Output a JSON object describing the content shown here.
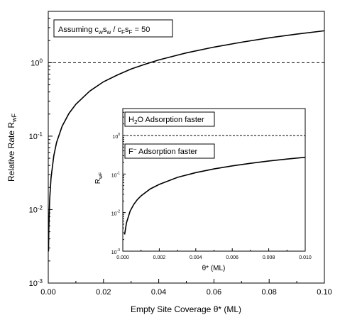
{
  "chart_data": [
    {
      "id": "main",
      "type": "line",
      "xlabel": "Empty Site Coverage θ* (ML)",
      "ylabel_main": "Relative Rate R",
      "ylabel_sub": "wF",
      "xlim": [
        0,
        0.1
      ],
      "ylim": [
        0.001,
        5
      ],
      "yscale": "log",
      "x_ticks": [
        0,
        0.02,
        0.04,
        0.06,
        0.08,
        0.1
      ],
      "x_tick_labels": [
        "0.00",
        "0.02",
        "0.04",
        "0.06",
        "0.08",
        "0.10"
      ],
      "y_ticks": [
        0.001,
        0.01,
        0.1,
        1
      ],
      "y_tick_labels": [
        {
          "base": "10",
          "exp": "-3"
        },
        {
          "base": "10",
          "exp": "-2"
        },
        {
          "base": "10",
          "exp": "-1"
        },
        {
          "base": "10",
          "exp": "0"
        }
      ],
      "reference_line_y": 1,
      "annotation": {
        "parts": [
          {
            "t": "Assuming c"
          },
          {
            "t": "w",
            "sub": true
          },
          {
            "t": "s"
          },
          {
            "t": "w",
            "sub": true
          },
          {
            "t": " / c"
          },
          {
            "t": "F",
            "sub": true
          },
          {
            "t": "s"
          },
          {
            "t": "F",
            "sub": true
          },
          {
            "t": " = 50"
          }
        ]
      },
      "series": [
        {
          "x": [
            0.0001,
            0.0002,
            0.0005,
            0.001,
            0.002,
            0.003,
            0.005,
            0.0075,
            0.01,
            0.015,
            0.02,
            0.025,
            0.03,
            0.035,
            0.04,
            0.05,
            0.06,
            0.07,
            0.08,
            0.09,
            0.1
          ],
          "y": [
            0.0027,
            0.0054,
            0.0135,
            0.027,
            0.054,
            0.082,
            0.136,
            0.204,
            0.272,
            0.41,
            0.55,
            0.68,
            0.82,
            0.95,
            1.09,
            1.36,
            1.63,
            1.9,
            2.18,
            2.45,
            2.72
          ]
        }
      ]
    },
    {
      "id": "inset",
      "type": "line",
      "xlabel": "θ* (ML)",
      "ylabel_main": "R",
      "ylabel_sub": "wF",
      "xlim": [
        0,
        0.01
      ],
      "ylim": [
        0.001,
        5
      ],
      "yscale": "log",
      "x_ticks": [
        0,
        0.002,
        0.004,
        0.006,
        0.008,
        0.01
      ],
      "x_tick_labels": [
        "0.000",
        "0.002",
        "0.004",
        "0.006",
        "0.008",
        "0.010"
      ],
      "y_ticks": [
        0.001,
        0.01,
        0.1,
        1
      ],
      "y_tick_labels": [
        {
          "base": "10",
          "exp": "-3"
        },
        {
          "base": "10",
          "exp": "-2"
        },
        {
          "base": "10",
          "exp": "-1"
        },
        {
          "base": "10",
          "exp": "0"
        }
      ],
      "reference_line_y": 1,
      "annotations": [
        {
          "parts": [
            {
              "t": "H"
            },
            {
              "t": "2",
              "sub": true
            },
            {
              "t": "O Adsorption faster"
            }
          ]
        },
        {
          "parts": [
            {
              "t": "F"
            },
            {
              "t": "−",
              "sup": true
            },
            {
              "t": " Adsorption faster"
            }
          ]
        }
      ],
      "series": [
        {
          "x": [
            0.0001,
            0.0002,
            0.0004,
            0.0006,
            0.0008,
            0.001,
            0.0015,
            0.002,
            0.003,
            0.004,
            0.005,
            0.006,
            0.007,
            0.008,
            0.009,
            0.01
          ],
          "y": [
            0.0027,
            0.0054,
            0.0109,
            0.0163,
            0.0218,
            0.0272,
            0.041,
            0.054,
            0.082,
            0.109,
            0.136,
            0.163,
            0.19,
            0.218,
            0.245,
            0.272
          ]
        }
      ]
    }
  ]
}
